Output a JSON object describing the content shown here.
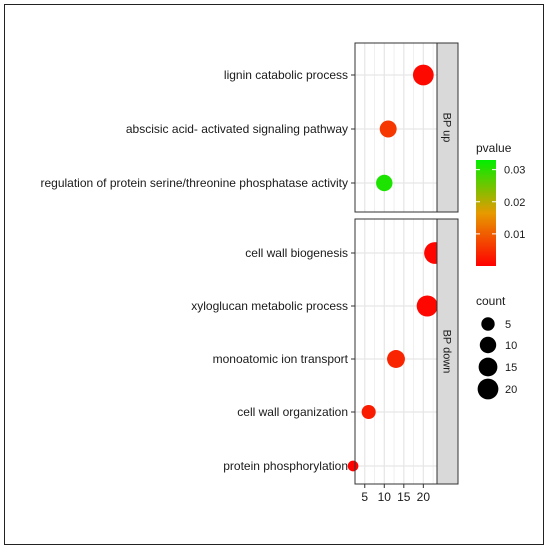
{
  "chart_data": {
    "type": "scatter",
    "x_ticks": [
      5,
      10,
      15,
      20
    ],
    "xlim": [
      2.5,
      23.5
    ],
    "panels": [
      {
        "strip_label": "BP up",
        "terms": [
          {
            "label": "lignin catabolic process",
            "count": 20,
            "pvalue": 0.001
          },
          {
            "label": "abscisic acid- activated signaling pathway",
            "count": 11,
            "pvalue": 0.006
          },
          {
            "label": "regulation of protein serine/threonine phosphatase activity",
            "count": 10,
            "pvalue": 0.031
          }
        ]
      },
      {
        "strip_label": "BP down",
        "terms": [
          {
            "label": "cell wall biogenesis",
            "count": 23,
            "pvalue": 0.0005
          },
          {
            "label": "xyloglucan metabolic process",
            "count": 21,
            "pvalue": 0.0008
          },
          {
            "label": "monoatomic ion transport",
            "count": 13,
            "pvalue": 0.004
          },
          {
            "label": "cell wall organization",
            "count": 6,
            "pvalue": 0.003
          },
          {
            "label": "protein phosphorylation",
            "count": 2,
            "pvalue": 0.0003
          }
        ]
      }
    ],
    "legend_pvalue": {
      "title": "pvalue",
      "ticks": [
        "0.03",
        "0.02",
        "0.01"
      ],
      "tick_values": [
        0.03,
        0.02,
        0.01
      ],
      "range": [
        0.0,
        0.033
      ],
      "color_low": "#ff0000",
      "color_mid": "#e69a00",
      "color_high": "#00ee00"
    },
    "legend_count": {
      "title": "count",
      "values": [
        5,
        10,
        15,
        20
      ]
    },
    "colors": {
      "panel_bg": "#ffffff",
      "grid": "#e6e6e6",
      "strip_bg": "#d9d9d9"
    }
  }
}
